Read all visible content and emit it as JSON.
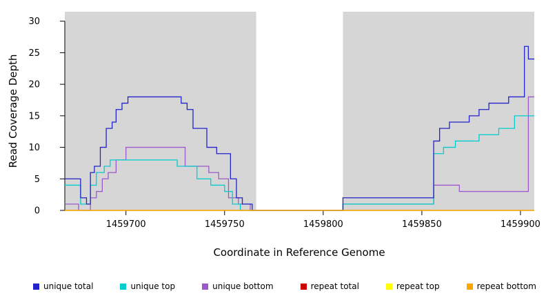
{
  "chart_data": {
    "type": "line",
    "step": true,
    "title": "",
    "xlabel": "Coordinate in Reference Genome",
    "ylabel": "Read Coverage Depth",
    "xlim": [
      1459669,
      1459907
    ],
    "ylim": [
      0,
      31.5
    ],
    "x_ticks": [
      1459700,
      1459750,
      1459800,
      1459850,
      1459900
    ],
    "y_ticks": [
      0,
      5,
      10,
      15,
      20,
      25,
      30
    ],
    "grid": false,
    "panel_background": "#D6D6D6",
    "axis_color": "#000000",
    "gap_region": {
      "x_start": 1459766,
      "x_end": 1459810,
      "color": "#FFFFFF"
    },
    "series": [
      {
        "name": "unique bottom",
        "color": "#9B59C9",
        "steps": [
          [
            1459669,
            1
          ],
          [
            1459676,
            0
          ],
          [
            1459682,
            2
          ],
          [
            1459685,
            3
          ],
          [
            1459688,
            5
          ],
          [
            1459691,
            6
          ],
          [
            1459695,
            8
          ],
          [
            1459700,
            10
          ],
          [
            1459730,
            7
          ],
          [
            1459742,
            6
          ],
          [
            1459747,
            5
          ],
          [
            1459752,
            2
          ],
          [
            1459757,
            1
          ],
          [
            1459763,
            0
          ],
          [
            1459810,
            1
          ],
          [
            1459856,
            4
          ],
          [
            1459869,
            3
          ],
          [
            1459904,
            18
          ]
        ]
      },
      {
        "name": "unique top",
        "color": "#00CDCD",
        "steps": [
          [
            1459669,
            4
          ],
          [
            1459677,
            1
          ],
          [
            1459682,
            4
          ],
          [
            1459685,
            6
          ],
          [
            1459689,
            7
          ],
          [
            1459692,
            8
          ],
          [
            1459726,
            7
          ],
          [
            1459736,
            5
          ],
          [
            1459743,
            4
          ],
          [
            1459750,
            3
          ],
          [
            1459754,
            1
          ],
          [
            1459758,
            0
          ],
          [
            1459810,
            1
          ],
          [
            1459856,
            9
          ],
          [
            1459861,
            10
          ],
          [
            1459867,
            11
          ],
          [
            1459879,
            12
          ],
          [
            1459889,
            13
          ],
          [
            1459897,
            15
          ]
        ]
      },
      {
        "name": "unique total",
        "color": "#2222CC",
        "steps": [
          [
            1459669,
            5
          ],
          [
            1459677,
            2
          ],
          [
            1459680,
            1
          ],
          [
            1459682,
            6
          ],
          [
            1459684,
            7
          ],
          [
            1459687,
            10
          ],
          [
            1459690,
            13
          ],
          [
            1459693,
            14
          ],
          [
            1459695,
            16
          ],
          [
            1459698,
            17
          ],
          [
            1459701,
            18
          ],
          [
            1459728,
            17
          ],
          [
            1459731,
            16
          ],
          [
            1459734,
            13
          ],
          [
            1459741,
            10
          ],
          [
            1459746,
            9
          ],
          [
            1459753,
            5
          ],
          [
            1459756,
            2
          ],
          [
            1459759,
            1
          ],
          [
            1459764,
            0
          ],
          [
            1459810,
            2
          ],
          [
            1459856,
            11
          ],
          [
            1459859,
            13
          ],
          [
            1459864,
            14
          ],
          [
            1459874,
            15
          ],
          [
            1459879,
            16
          ],
          [
            1459884,
            17
          ],
          [
            1459894,
            18
          ],
          [
            1459902,
            26
          ],
          [
            1459904,
            24
          ]
        ]
      },
      {
        "name": "repeat total",
        "color": "#CC0000",
        "steps": [
          [
            1459669,
            0
          ]
        ]
      },
      {
        "name": "repeat top",
        "color": "#FFFF00",
        "steps": [
          [
            1459669,
            0
          ]
        ]
      },
      {
        "name": "repeat bottom",
        "color": "#FFA500",
        "steps": [
          [
            1459669,
            0
          ]
        ]
      }
    ],
    "legend": [
      {
        "label": "unique total",
        "color": "#2222CC"
      },
      {
        "label": "unique top",
        "color": "#00CDCD"
      },
      {
        "label": "unique bottom",
        "color": "#9B59C9"
      },
      {
        "label": "repeat total",
        "color": "#CC0000"
      },
      {
        "label": "repeat top",
        "color": "#FFFF00"
      },
      {
        "label": "repeat bottom",
        "color": "#FFA500"
      }
    ],
    "legend_position": "bottom"
  }
}
